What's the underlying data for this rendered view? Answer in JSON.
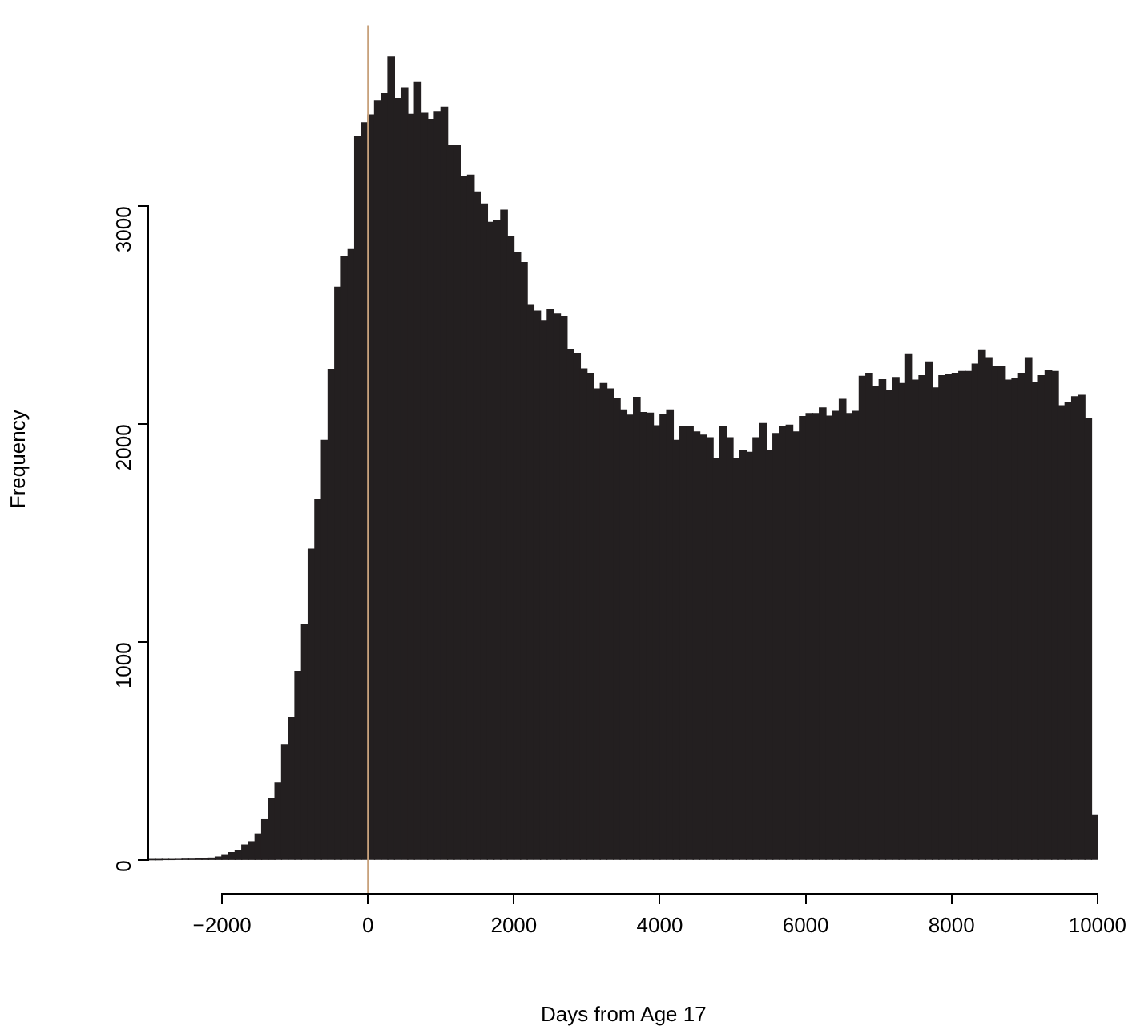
{
  "chart_data": {
    "type": "histogram",
    "xlabel": "Days from Age 17",
    "ylabel": "Frequency",
    "bins": [
      -3003,
      -2912,
      -2821,
      -2730,
      -2639,
      -2548,
      -2457,
      -2366,
      -2275,
      -2184,
      -2093,
      -2002,
      -1911,
      -1820,
      -1729,
      -1638,
      -1547,
      -1456,
      -1365,
      -1274,
      -1183,
      -1092,
      -1001,
      -910,
      -819,
      -728,
      -637,
      -546,
      -455,
      -364,
      -273,
      -182,
      -91,
      0,
      91,
      182,
      273,
      364,
      455,
      546,
      637,
      728,
      819,
      910,
      1001,
      1092,
      1183,
      1274,
      1365,
      1456,
      1547,
      1638,
      1729,
      1820,
      1911,
      2002,
      2093,
      2184,
      2275,
      2366,
      2457,
      2548,
      2639,
      2730,
      2821,
      2912,
      3003,
      3094,
      3185,
      3276,
      3367,
      3458,
      3549,
      3640,
      3731,
      3822,
      3913,
      4004,
      4095,
      4186,
      4277,
      4368,
      4459,
      4550,
      4641,
      4732,
      4823,
      4914,
      5005,
      5096,
      5187,
      5278,
      5369,
      5460,
      5551,
      5642,
      5733,
      5824,
      5915,
      6006,
      6097,
      6188,
      6279,
      6370,
      6461,
      6552,
      6643,
      6734,
      6825,
      6916,
      7007,
      7098,
      7189,
      7280,
      7371,
      7462,
      7553,
      7644,
      7735,
      7826,
      7917,
      8008,
      8099,
      8190,
      8281,
      8372,
      8463,
      8554,
      8645,
      8736,
      8827,
      8918,
      9009,
      9100,
      9191,
      9282,
      9373,
      9464,
      9555,
      9646,
      9737,
      9828,
      9919,
      10010
    ],
    "values": [
      2,
      2,
      3,
      3,
      4,
      5,
      5,
      6,
      8,
      10,
      15,
      22,
      35,
      45,
      70,
      85,
      121,
      186,
      282,
      354,
      531,
      656,
      866,
      1083,
      1427,
      1656,
      1926,
      2252,
      2628,
      2769,
      2801,
      3319,
      3384,
      3420,
      3483,
      3517,
      3685,
      3495,
      3541,
      3423,
      3570,
      3427,
      3396,
      3432,
      3456,
      3278,
      3278,
      3138,
      3143,
      3066,
      3011,
      2926,
      2933,
      2982,
      2861,
      2789,
      2741,
      2548,
      2519,
      2476,
      2524,
      2505,
      2495,
      2343,
      2326,
      2254,
      2234,
      2162,
      2187,
      2162,
      2119,
      2066,
      2042,
      2124,
      2054,
      2051,
      1993,
      2046,
      2066,
      1926,
      1991,
      1991,
      1965,
      1950,
      1938,
      1844,
      1989,
      1938,
      1844,
      1878,
      1871,
      1938,
      2003,
      1878,
      1957,
      1989,
      1996,
      1965,
      2035,
      2049,
      2049,
      2075,
      2037,
      2059,
      2114,
      2049,
      2059,
      2220,
      2234,
      2174,
      2205,
      2153,
      2215,
      2187,
      2319,
      2203,
      2223,
      2283,
      2167,
      2223,
      2230,
      2234,
      2242,
      2242,
      2276,
      2338,
      2302,
      2263,
      2263,
      2203,
      2210,
      2234,
      2302,
      2191,
      2223,
      2247,
      2242,
      2085,
      2102,
      2126,
      2133,
      2025,
      205
    ],
    "color": "#231f20",
    "xlim": [
      -3000,
      10010
    ],
    "ylim": [
      -150,
      3830
    ],
    "xticks": [
      {
        "value": -2000,
        "label": "−2000"
      },
      0,
      2000,
      4000,
      6000,
      8000,
      10000
    ],
    "yticks": [
      0,
      1000,
      2000,
      3000
    ],
    "ref_lines": [
      {
        "axis": "x",
        "value": 0,
        "color": "#c8a27c"
      }
    ],
    "grid": false,
    "legend": false
  }
}
